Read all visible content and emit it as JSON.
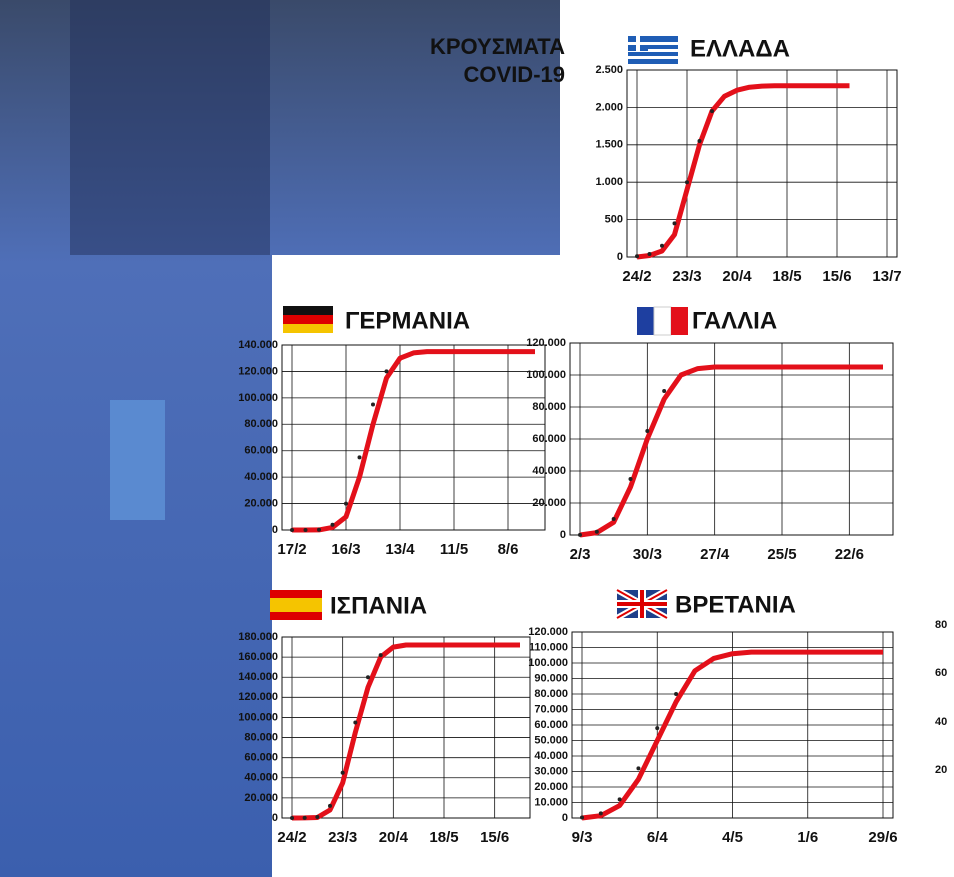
{
  "header": [
    "ΚΡΟΥΣΜΑΤΑ",
    "COVID-19"
  ],
  "edge_labels": [
    80,
    60,
    40,
    20
  ],
  "chart_data": [
    {
      "type": "line",
      "title": "ΕΛΛΑΔΑ",
      "categories": [
        "24/2",
        null,
        null,
        null,
        "23/3",
        null,
        null,
        null,
        "20/4",
        null,
        null,
        null,
        "18/5",
        null,
        null,
        null,
        "15/6",
        null,
        null,
        null,
        "13/7"
      ],
      "series": [
        {
          "color": "#e3101a",
          "values": [
            0,
            20,
            80,
            300,
            900,
            1500,
            1950,
            2150,
            2230,
            2270,
            2285,
            2290,
            2290,
            2290,
            2290,
            2290,
            2290,
            2290,
            null,
            null,
            null
          ]
        },
        {
          "color": "#222222",
          "values": [
            10,
            40,
            150,
            450,
            1000,
            1550,
            1950,
            null,
            null,
            null,
            null,
            null,
            null,
            null,
            null,
            null,
            null,
            null,
            null,
            null,
            null
          ]
        }
      ],
      "ylim": [
        0,
        2500
      ],
      "yticks": [
        0,
        500,
        {
          "value": 1000,
          "label": "1.000"
        },
        {
          "value": 1500,
          "label": "1.500"
        },
        {
          "value": 2000,
          "label": "2.000"
        },
        {
          "value": 2500,
          "label": "2.500"
        }
      ],
      "grid": true
    },
    {
      "type": "line",
      "title": "ΓΕΡΜΑΝΙΑ",
      "categories": [
        "17/2",
        null,
        null,
        null,
        "16/3",
        null,
        null,
        null,
        "13/4",
        null,
        null,
        null,
        "11/5",
        null,
        null,
        null,
        "8/6",
        null,
        null
      ],
      "series": [
        {
          "color": "#e3101a",
          "values": [
            0,
            0,
            100,
            2000,
            10000,
            40000,
            80000,
            115000,
            130000,
            134000,
            135000,
            135000,
            135000,
            135000,
            135000,
            135000,
            135000,
            135000,
            135000
          ]
        },
        {
          "color": "#222222",
          "values": [
            0,
            0,
            150,
            4000,
            20000,
            55000,
            95000,
            120000,
            null,
            null,
            null,
            null,
            null,
            null,
            null,
            null,
            null,
            null,
            null
          ]
        }
      ],
      "ylim": [
        0,
        140000
      ],
      "yticks": [
        0,
        {
          "value": 20000,
          "label": "20.000"
        },
        {
          "value": 40000,
          "label": "40.000"
        },
        {
          "value": 60000,
          "label": "60.000"
        },
        {
          "value": 80000,
          "label": "80.000"
        },
        {
          "value": 100000,
          "label": "100.000"
        },
        {
          "value": 120000,
          "label": "120.000"
        },
        {
          "value": 140000,
          "label": "140.000"
        }
      ],
      "grid": true
    },
    {
      "type": "line",
      "title": "ΓΑΛΛΙΑ",
      "categories": [
        "2/3",
        null,
        null,
        null,
        "30/3",
        null,
        null,
        null,
        "27/4",
        null,
        null,
        null,
        "25/5",
        null,
        null,
        null,
        "22/6",
        null,
        null
      ],
      "series": [
        {
          "color": "#e3101a",
          "values": [
            0,
            1500,
            8000,
            30000,
            60000,
            85000,
            100000,
            104000,
            105000,
            105000,
            105000,
            105000,
            105000,
            105000,
            105000,
            105000,
            105000,
            105000,
            105000
          ]
        },
        {
          "color": "#222222",
          "values": [
            100,
            2000,
            10000,
            35000,
            65000,
            90000,
            null,
            null,
            null,
            null,
            null,
            null,
            null,
            null,
            null,
            null,
            null,
            null,
            null
          ]
        }
      ],
      "ylim": [
        0,
        120000
      ],
      "yticks": [
        0,
        {
          "value": 20000,
          "label": "20.000"
        },
        {
          "value": 40000,
          "label": "40.000"
        },
        {
          "value": 60000,
          "label": "60.000"
        },
        {
          "value": 80000,
          "label": "80.000"
        },
        {
          "value": 100000,
          "label": "100.000"
        },
        {
          "value": 120000,
          "label": "120.000"
        }
      ],
      "grid": true
    },
    {
      "type": "line",
      "title": "ΙΣΠΑΝΙΑ",
      "categories": [
        "24/2",
        null,
        null,
        null,
        "23/3",
        null,
        null,
        null,
        "20/4",
        null,
        null,
        null,
        "18/5",
        null,
        null,
        null,
        "15/6",
        null,
        null
      ],
      "series": [
        {
          "color": "#e3101a",
          "values": [
            0,
            100,
            500,
            8000,
            35000,
            85000,
            130000,
            160000,
            170000,
            172000,
            172000,
            172000,
            172000,
            172000,
            172000,
            172000,
            172000,
            172000,
            172000
          ]
        },
        {
          "color": "#222222",
          "values": [
            0,
            150,
            1000,
            12000,
            45000,
            95000,
            140000,
            162000,
            null,
            null,
            null,
            null,
            null,
            null,
            null,
            null,
            null,
            null,
            null
          ]
        }
      ],
      "ylim": [
        0,
        180000
      ],
      "yticks": [
        0,
        {
          "value": 20000,
          "label": "20.000"
        },
        {
          "value": 40000,
          "label": "40.000"
        },
        {
          "value": 60000,
          "label": "60.000"
        },
        {
          "value": 80000,
          "label": "80.000"
        },
        {
          "value": 100000,
          "label": "100.000"
        },
        {
          "value": 120000,
          "label": "120.000"
        },
        {
          "value": 140000,
          "label": "140.000"
        },
        {
          "value": 160000,
          "label": "160.000"
        },
        {
          "value": 180000,
          "label": "180.000"
        }
      ],
      "grid": true
    },
    {
      "type": "line",
      "title": "ΒΡΕΤΑΝΙΑ",
      "categories": [
        "9/3",
        null,
        null,
        null,
        "6/4",
        null,
        null,
        null,
        "4/5",
        null,
        null,
        null,
        "1/6",
        null,
        null,
        null,
        "29/6"
      ],
      "series": [
        {
          "color": "#e3101a",
          "values": [
            0,
            1500,
            8000,
            25000,
            50000,
            75000,
            95000,
            103000,
            106000,
            107000,
            107000,
            107000,
            107000,
            107000,
            107000,
            107000,
            107000
          ]
        },
        {
          "color": "#222222",
          "values": [
            300,
            3000,
            12000,
            32000,
            58000,
            80000,
            null,
            null,
            null,
            null,
            null,
            null,
            null,
            null,
            null,
            null,
            null
          ]
        }
      ],
      "ylim": [
        0,
        120000
      ],
      "yticks": [
        0,
        {
          "value": 10000,
          "label": "10.000"
        },
        {
          "value": 20000,
          "label": "20.000"
        },
        {
          "value": 30000,
          "label": "30.000"
        },
        {
          "value": 40000,
          "label": "40.000"
        },
        {
          "value": 50000,
          "label": "50.000"
        },
        {
          "value": 60000,
          "label": "60.000"
        },
        {
          "value": 70000,
          "label": "70.000"
        },
        {
          "value": 80000,
          "label": "80.000"
        },
        {
          "value": 90000,
          "label": "90.000"
        },
        {
          "value": 100000,
          "label": "100.000"
        },
        {
          "value": 110000,
          "label": "110.000"
        },
        {
          "value": 120000,
          "label": "120.000"
        }
      ],
      "grid": true
    }
  ]
}
